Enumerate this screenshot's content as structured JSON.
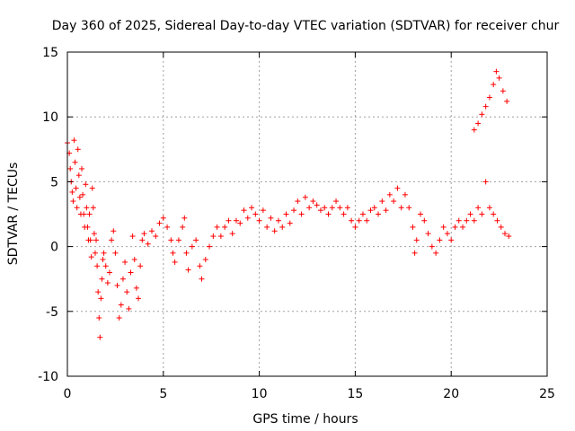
{
  "chart_data": {
    "type": "scatter",
    "title": "Day 360 of 2025, Sidereal Day-to-day VTEC variation (SDTVAR) for receiver chur",
    "xlabel": "GPS time / hours",
    "ylabel": "SDTVAR / TECUs",
    "xlim": [
      0,
      25
    ],
    "ylim": [
      -10,
      15
    ],
    "xticks": [
      0,
      5,
      10,
      15,
      20,
      25
    ],
    "yticks": [
      -10,
      -5,
      0,
      5,
      10,
      15
    ],
    "grid": true,
    "marker": "+",
    "color": "#ff0000",
    "series": [
      {
        "name": "SDTVAR",
        "points": [
          [
            0.0,
            8.0
          ],
          [
            0.1,
            7.2
          ],
          [
            0.15,
            6.0
          ],
          [
            0.2,
            5.0
          ],
          [
            0.25,
            4.2
          ],
          [
            0.3,
            3.5
          ],
          [
            0.35,
            8.2
          ],
          [
            0.4,
            6.5
          ],
          [
            0.45,
            4.5
          ],
          [
            0.5,
            3.0
          ],
          [
            0.55,
            7.5
          ],
          [
            0.6,
            5.5
          ],
          [
            0.65,
            3.8
          ],
          [
            0.7,
            2.5
          ],
          [
            0.75,
            6.0
          ],
          [
            0.8,
            4.0
          ],
          [
            0.85,
            2.5
          ],
          [
            0.9,
            1.5
          ],
          [
            0.95,
            4.8
          ],
          [
            1.0,
            3.0
          ],
          [
            1.05,
            1.5
          ],
          [
            1.1,
            0.5
          ],
          [
            1.15,
            2.5
          ],
          [
            1.2,
            0.5
          ],
          [
            1.25,
            -0.8
          ],
          [
            1.3,
            4.5
          ],
          [
            1.35,
            3.0
          ],
          [
            1.4,
            1.0
          ],
          [
            1.45,
            -0.5
          ],
          [
            1.5,
            0.5
          ],
          [
            1.55,
            -1.5
          ],
          [
            1.6,
            -3.5
          ],
          [
            1.65,
            -5.5
          ],
          [
            1.7,
            -7.0
          ],
          [
            1.75,
            -4.0
          ],
          [
            1.8,
            -2.5
          ],
          [
            1.85,
            -1.0
          ],
          [
            1.9,
            -0.5
          ],
          [
            2.0,
            -1.5
          ],
          [
            2.1,
            -2.8
          ],
          [
            2.2,
            -2.0
          ],
          [
            2.3,
            0.5
          ],
          [
            2.4,
            1.2
          ],
          [
            2.5,
            -0.5
          ],
          [
            2.6,
            -3.0
          ],
          [
            2.7,
            -5.5
          ],
          [
            2.8,
            -4.5
          ],
          [
            2.9,
            -2.5
          ],
          [
            3.0,
            -1.2
          ],
          [
            3.1,
            -3.5
          ],
          [
            3.2,
            -4.8
          ],
          [
            3.3,
            -2.0
          ],
          [
            3.4,
            0.8
          ],
          [
            3.5,
            -1.0
          ],
          [
            3.6,
            -3.2
          ],
          [
            3.7,
            -4.0
          ],
          [
            3.8,
            -1.5
          ],
          [
            3.9,
            0.5
          ],
          [
            4.0,
            1.0
          ],
          [
            4.2,
            0.2
          ],
          [
            4.4,
            1.2
          ],
          [
            4.6,
            0.8
          ],
          [
            4.8,
            1.8
          ],
          [
            5.0,
            2.2
          ],
          [
            5.2,
            1.5
          ],
          [
            5.4,
            0.5
          ],
          [
            5.5,
            -0.5
          ],
          [
            5.6,
            -1.2
          ],
          [
            5.8,
            0.5
          ],
          [
            6.0,
            1.5
          ],
          [
            6.1,
            2.2
          ],
          [
            6.2,
            -0.5
          ],
          [
            6.3,
            -1.8
          ],
          [
            6.5,
            0.0
          ],
          [
            6.7,
            0.5
          ],
          [
            6.9,
            -1.5
          ],
          [
            7.0,
            -2.5
          ],
          [
            7.2,
            -1.0
          ],
          [
            7.4,
            0.0
          ],
          [
            7.6,
            0.8
          ],
          [
            7.8,
            1.5
          ],
          [
            8.0,
            0.8
          ],
          [
            8.2,
            1.5
          ],
          [
            8.4,
            2.0
          ],
          [
            8.6,
            1.0
          ],
          [
            8.8,
            2.0
          ],
          [
            9.0,
            1.8
          ],
          [
            9.2,
            2.8
          ],
          [
            9.4,
            2.2
          ],
          [
            9.6,
            3.0
          ],
          [
            9.8,
            2.5
          ],
          [
            10.0,
            2.0
          ],
          [
            10.2,
            2.8
          ],
          [
            10.4,
            1.5
          ],
          [
            10.6,
            2.2
          ],
          [
            10.8,
            1.2
          ],
          [
            11.0,
            2.0
          ],
          [
            11.2,
            1.5
          ],
          [
            11.4,
            2.5
          ],
          [
            11.6,
            1.8
          ],
          [
            11.8,
            2.8
          ],
          [
            12.0,
            3.5
          ],
          [
            12.2,
            2.5
          ],
          [
            12.4,
            3.8
          ],
          [
            12.6,
            3.0
          ],
          [
            12.8,
            3.5
          ],
          [
            13.0,
            3.2
          ],
          [
            13.2,
            2.8
          ],
          [
            13.4,
            3.0
          ],
          [
            13.6,
            2.5
          ],
          [
            13.8,
            3.0
          ],
          [
            14.0,
            3.5
          ],
          [
            14.2,
            3.0
          ],
          [
            14.4,
            2.5
          ],
          [
            14.6,
            3.0
          ],
          [
            14.8,
            2.0
          ],
          [
            15.0,
            1.5
          ],
          [
            15.2,
            2.0
          ],
          [
            15.4,
            2.5
          ],
          [
            15.6,
            2.0
          ],
          [
            15.8,
            2.8
          ],
          [
            16.0,
            3.0
          ],
          [
            16.2,
            2.5
          ],
          [
            16.4,
            3.5
          ],
          [
            16.6,
            2.8
          ],
          [
            16.8,
            4.0
          ],
          [
            17.0,
            3.5
          ],
          [
            17.2,
            4.5
          ],
          [
            17.4,
            3.0
          ],
          [
            17.6,
            4.0
          ],
          [
            17.8,
            3.0
          ],
          [
            18.0,
            1.5
          ],
          [
            18.1,
            -0.5
          ],
          [
            18.2,
            0.5
          ],
          [
            18.4,
            2.5
          ],
          [
            18.6,
            2.0
          ],
          [
            18.8,
            1.0
          ],
          [
            19.0,
            0.0
          ],
          [
            19.2,
            -0.5
          ],
          [
            19.4,
            0.5
          ],
          [
            19.6,
            1.5
          ],
          [
            19.8,
            1.0
          ],
          [
            20.0,
            0.5
          ],
          [
            20.2,
            1.5
          ],
          [
            20.4,
            2.0
          ],
          [
            20.6,
            1.5
          ],
          [
            20.8,
            2.0
          ],
          [
            21.0,
            2.5
          ],
          [
            21.2,
            2.0
          ],
          [
            21.4,
            3.0
          ],
          [
            21.6,
            2.5
          ],
          [
            21.8,
            5.0
          ],
          [
            22.0,
            3.0
          ],
          [
            22.2,
            2.5
          ],
          [
            22.4,
            2.0
          ],
          [
            22.6,
            1.5
          ],
          [
            22.8,
            1.0
          ],
          [
            23.0,
            0.8
          ],
          [
            21.2,
            9.0
          ],
          [
            21.4,
            9.5
          ],
          [
            21.6,
            10.2
          ],
          [
            21.8,
            10.8
          ],
          [
            22.0,
            11.5
          ],
          [
            22.2,
            12.5
          ],
          [
            22.35,
            13.5
          ],
          [
            22.5,
            13.0
          ],
          [
            22.7,
            12.0
          ],
          [
            22.9,
            11.2
          ]
        ]
      }
    ]
  }
}
